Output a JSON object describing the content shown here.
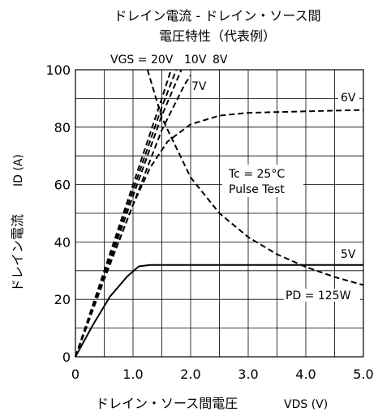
{
  "chart_data": {
    "type": "line",
    "title": "ドレイン電流 - ドレイン・ソース間",
    "subtitle": "電圧特性（代表例）",
    "xlabel": "ドレイン・ソース間電圧",
    "xlabel_symbol": "VDS (V)",
    "ylabel": "ドレイン電流",
    "ylabel_symbol": "ID (A)",
    "xlim": [
      0,
      5
    ],
    "ylim": [
      0,
      100
    ],
    "x_ticks": [
      0,
      1,
      2,
      3,
      4,
      5
    ],
    "x_tick_labels": [
      "0",
      "1.0",
      "2.0",
      "3.0",
      "4.0",
      "5.0"
    ],
    "y_ticks": [
      0,
      20,
      40,
      60,
      80,
      100
    ],
    "y_tick_labels": [
      "0",
      "20",
      "40",
      "60",
      "80",
      "100"
    ],
    "grid": true,
    "series": [
      {
        "name": "VGS = 20V",
        "style": "dashed",
        "points": [
          [
            0,
            0
          ],
          [
            0.5,
            30
          ],
          [
            1.0,
            60
          ],
          [
            1.5,
            90
          ],
          [
            1.66,
            100
          ]
        ]
      },
      {
        "name": "10V",
        "style": "dashed",
        "points": [
          [
            0,
            0
          ],
          [
            0.5,
            29
          ],
          [
            1.0,
            58
          ],
          [
            1.5,
            87
          ],
          [
            1.75,
            100
          ]
        ]
      },
      {
        "name": "8V",
        "style": "dashed",
        "points": [
          [
            0,
            0
          ],
          [
            0.5,
            28
          ],
          [
            1.0,
            56
          ],
          [
            1.5,
            84
          ],
          [
            1.84,
            100
          ]
        ]
      },
      {
        "name": "7V",
        "style": "dashed",
        "points": [
          [
            0,
            0
          ],
          [
            0.5,
            27
          ],
          [
            1.0,
            53
          ],
          [
            1.5,
            79
          ],
          [
            1.9,
            95
          ],
          [
            2.0,
            98
          ]
        ]
      },
      {
        "name": "6V",
        "style": "dashed",
        "points": [
          [
            0,
            0
          ],
          [
            0.5,
            27
          ],
          [
            1.0,
            53
          ],
          [
            1.3,
            66
          ],
          [
            1.6,
            75
          ],
          [
            2.0,
            81
          ],
          [
            2.5,
            84
          ],
          [
            3.0,
            85
          ],
          [
            4.0,
            85.5
          ],
          [
            5.0,
            86
          ]
        ]
      },
      {
        "name": "5V",
        "style": "solid",
        "points": [
          [
            0,
            0
          ],
          [
            0.3,
            11
          ],
          [
            0.6,
            21
          ],
          [
            0.9,
            28
          ],
          [
            1.1,
            31.5
          ],
          [
            1.3,
            32
          ],
          [
            5.0,
            32
          ]
        ]
      },
      {
        "name": "PD = 125W",
        "style": "dashed",
        "points": [
          [
            1.25,
            100
          ],
          [
            1.5,
            83.3
          ],
          [
            2.0,
            62.5
          ],
          [
            2.5,
            50
          ],
          [
            3.0,
            41.7
          ],
          [
            3.5,
            35.7
          ],
          [
            4.0,
            31.3
          ],
          [
            4.5,
            27.8
          ],
          [
            5.0,
            25
          ]
        ]
      }
    ],
    "annotations": [
      "Tc = 25°C",
      "Pulse Test"
    ]
  }
}
